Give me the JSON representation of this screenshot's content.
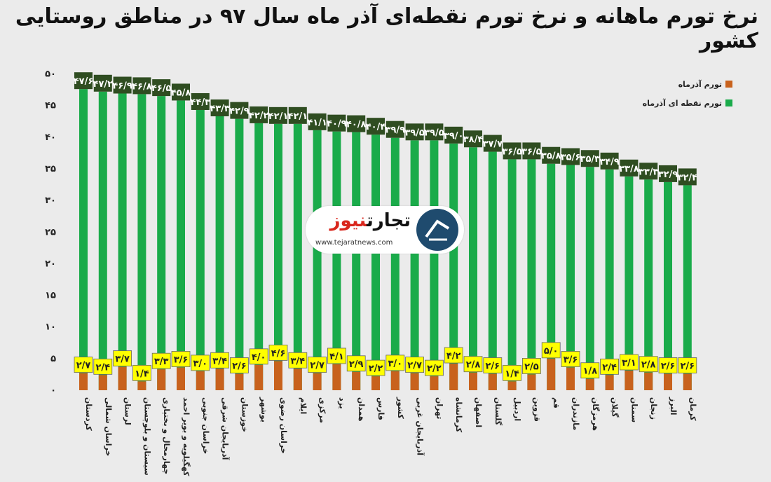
{
  "chart_data": {
    "type": "bar",
    "title": "نرخ تورم ماهانه و نرخ تورم نقطه‌ای آذر ماه سال ۹۷ در مناطق روستایی کشور",
    "categories": [
      "کردستان",
      "خراسان شمالی",
      "لرستان",
      "سیستان و بلوچستان",
      "چهارمحال و بختیاری",
      "کهگیلویه و بویر احمد",
      "خراسان جنوبی",
      "آذربایجان شرقی",
      "خوزستان",
      "بوشهر",
      "خراسان رضوی",
      "ایلام",
      "مرکزی",
      "یزد",
      "همدان",
      "فارس",
      "کشور",
      "آذربایجان غربی",
      "تهران",
      "کرمانشاه",
      "اصفهان",
      "گلستان",
      "اردبیل",
      "قزوین",
      "قم",
      "مازندران",
      "هرمزگان",
      "گیلان",
      "سمنان",
      "زنجان",
      "البرز",
      "کرمان"
    ],
    "series": [
      {
        "name": "تورم نقطه ای آذرماه",
        "color": "#1aab4a",
        "values": [
          47.6,
          47.2,
          46.9,
          46.8,
          46.5,
          45.8,
          44.3,
          43.3,
          42.9,
          42.2,
          42.1,
          42.1,
          41.1,
          40.9,
          40.8,
          40.4,
          39.9,
          39.5,
          39.5,
          39.0,
          38.4,
          37.7,
          36.5,
          36.5,
          35.8,
          35.6,
          35.3,
          34.9,
          33.8,
          33.3,
          32.9,
          32.4
        ]
      },
      {
        "name": "تورم آذرماه",
        "color": "#c8621d",
        "values": [
          2.7,
          2.4,
          3.7,
          1.4,
          3.3,
          3.6,
          3.0,
          3.4,
          2.6,
          4.0,
          4.6,
          3.4,
          2.7,
          4.1,
          2.9,
          2.2,
          3.0,
          2.7,
          2.2,
          4.2,
          2.8,
          2.6,
          1.4,
          2.5,
          5.0,
          3.6,
          1.8,
          2.4,
          3.1,
          2.8,
          2.6,
          2.6
        ]
      }
    ],
    "y_tick_labels": [
      "۰",
      "۵",
      "۱۰",
      "۱۵",
      "۲۰",
      "۲۵",
      "۳۰",
      "۳۵",
      "۴۰",
      "۴۵",
      "۵۰"
    ],
    "ylim": [
      0,
      50
    ],
    "grid": false,
    "legend": "top-right",
    "label_colors": {
      "point_label_bg": "#2f4d21",
      "point_label_text": "#ffffff",
      "monthly_label_bg": "#ffff00",
      "monthly_label_text": "#222222"
    }
  },
  "logo": {
    "name_part1": "تجارت",
    "name_part2": "نیوز",
    "url": "www.tejaratnews.com"
  }
}
